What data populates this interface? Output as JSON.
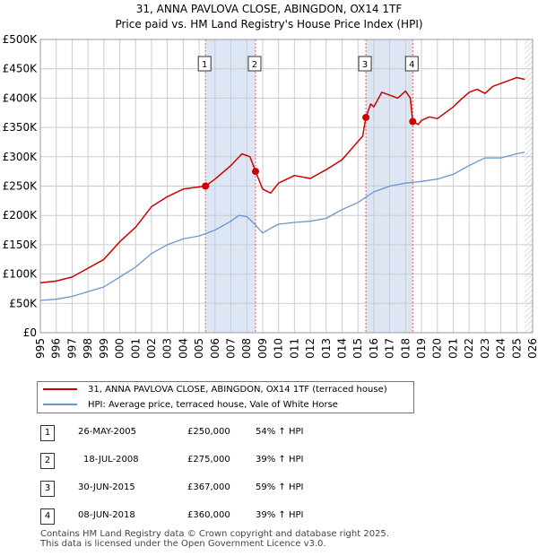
{
  "title_line1": "31, ANNA PAVLOVA CLOSE, ABINGDON, OX14 1TF",
  "title_line2": "Price paid vs. HM Land Registry's House Price Index (HPI)",
  "legend": {
    "property_label": "31, ANNA PAVLOVA CLOSE, ABINGDON, OX14 1TF (terraced house)",
    "hpi_label": "HPI: Average price, terraced house, Vale of White Horse"
  },
  "transactions": [
    {
      "num": "1",
      "date": "26-MAY-2005",
      "price": "£250,000",
      "hpi": "54% ↑ HPI"
    },
    {
      "num": "2",
      "date": "18-JUL-2008",
      "price": "£275,000",
      "hpi": "39% ↑ HPI"
    },
    {
      "num": "3",
      "date": "30-JUN-2015",
      "price": "£367,000",
      "hpi": "59% ↑ HPI"
    },
    {
      "num": "4",
      "date": "08-JUN-2018",
      "price": "£360,000",
      "hpi": "39% ↑ HPI"
    }
  ],
  "footer_line1": "Contains HM Land Registry data © Crown copyright and database right 2025.",
  "footer_line2": "This data is licensed under the Open Government Licence v3.0.",
  "colors": {
    "property": "#cc0000",
    "hpi": "#6a96cc",
    "shade": "#dde6f4",
    "grid": "#cccccc"
  },
  "chart_data": {
    "type": "line",
    "title": "31, ANNA PAVLOVA CLOSE, ABINGDON, OX14 1TF — Price paid vs. HM Land Registry's House Price Index (HPI)",
    "xlim": [
      1995,
      2026
    ],
    "ylim": [
      0,
      500000
    ],
    "x_ticks": [
      "1995",
      "1996",
      "1997",
      "1998",
      "1999",
      "2000",
      "2001",
      "2002",
      "2003",
      "2004",
      "2005",
      "2006",
      "2007",
      "2008",
      "2009",
      "2010",
      "2011",
      "2012",
      "2013",
      "2014",
      "2015",
      "2016",
      "2017",
      "2018",
      "2019",
      "2020",
      "2021",
      "2022",
      "2023",
      "2024",
      "2025",
      "2026"
    ],
    "y_ticks": [
      {
        "value": 0,
        "label": "£0"
      },
      {
        "value": 50000,
        "label": "£50K"
      },
      {
        "value": 100000,
        "label": "£100K"
      },
      {
        "value": 150000,
        "label": "£150K"
      },
      {
        "value": 200000,
        "label": "£200K"
      },
      {
        "value": 250000,
        "label": "£250K"
      },
      {
        "value": 300000,
        "label": "£300K"
      },
      {
        "value": 350000,
        "label": "£350K"
      },
      {
        "value": 400000,
        "label": "£400K"
      },
      {
        "value": 450000,
        "label": "£450K"
      },
      {
        "value": 500000,
        "label": "£500K"
      }
    ],
    "shaded_ranges": [
      [
        2005.4,
        2008.55
      ],
      [
        2015.5,
        2018.45
      ]
    ],
    "forecast_start": 2025.5,
    "series": [
      {
        "name": "31, ANNA PAVLOVA CLOSE, ABINGDON, OX14 1TF (terraced house)",
        "x": [
          1995.0,
          1996.0,
          1997.0,
          1998.0,
          1999.0,
          2000.0,
          2001.0,
          2002.0,
          2003.0,
          2004.0,
          2005.4,
          2006.0,
          2007.0,
          2007.7,
          2008.2,
          2008.55,
          2009.0,
          2009.5,
          2010.0,
          2011.0,
          2012.0,
          2013.0,
          2014.0,
          2014.8,
          2015.3,
          2015.5,
          2015.8,
          2016.0,
          2016.5,
          2017.0,
          2017.5,
          2018.0,
          2018.3,
          2018.45,
          2018.8,
          2019.0,
          2019.5,
          2020.0,
          2020.5,
          2021.0,
          2021.5,
          2022.0,
          2022.5,
          2023.0,
          2023.5,
          2024.0,
          2024.5,
          2025.0,
          2025.5
        ],
        "y": [
          85000,
          88000,
          95000,
          110000,
          125000,
          155000,
          180000,
          215000,
          232000,
          245000,
          250000,
          262000,
          285000,
          305000,
          300000,
          275000,
          245000,
          238000,
          255000,
          268000,
          263000,
          278000,
          295000,
          320000,
          335000,
          367000,
          390000,
          385000,
          410000,
          405000,
          400000,
          412000,
          400000,
          360000,
          355000,
          362000,
          368000,
          365000,
          375000,
          385000,
          398000,
          410000,
          415000,
          408000,
          420000,
          425000,
          430000,
          435000,
          432000
        ]
      },
      {
        "name": "HPI: Average price, terraced house, Vale of White Horse",
        "x": [
          1995.0,
          1996.0,
          1997.0,
          1998.0,
          1999.0,
          2000.0,
          2001.0,
          2002.0,
          2003.0,
          2004.0,
          2005.0,
          2006.0,
          2007.0,
          2007.5,
          2008.0,
          2008.5,
          2009.0,
          2009.5,
          2010.0,
          2011.0,
          2012.0,
          2013.0,
          2014.0,
          2015.0,
          2016.0,
          2017.0,
          2018.0,
          2019.0,
          2020.0,
          2021.0,
          2022.0,
          2023.0,
          2024.0,
          2025.0,
          2025.5
        ],
        "y": [
          55000,
          57000,
          62000,
          70000,
          78000,
          95000,
          112000,
          135000,
          150000,
          160000,
          165000,
          175000,
          190000,
          200000,
          198000,
          185000,
          170000,
          178000,
          185000,
          188000,
          190000,
          195000,
          210000,
          222000,
          240000,
          250000,
          255000,
          258000,
          262000,
          270000,
          285000,
          298000,
          298000,
          305000,
          308000
        ]
      }
    ],
    "sale_markers": [
      {
        "label": "1",
        "x": 2005.4,
        "y": 250000
      },
      {
        "label": "2",
        "x": 2008.55,
        "y": 275000
      },
      {
        "label": "3",
        "x": 2015.5,
        "y": 367000
      },
      {
        "label": "4",
        "x": 2018.45,
        "y": 360000
      }
    ]
  }
}
